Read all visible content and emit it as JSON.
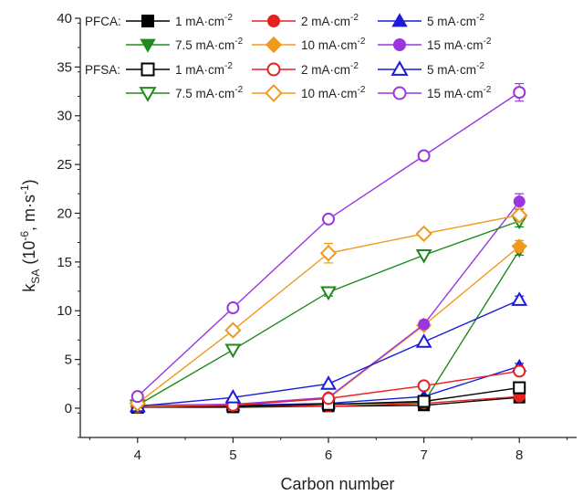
{
  "chart_data": {
    "type": "line",
    "title": "",
    "xlabel": "Carbon number",
    "ylabel": {
      "base": "k",
      "sub": "SA",
      "mid": " (10",
      "sup": "-6",
      "after": ", m·s",
      "sup2": "-1",
      "end": ")"
    },
    "xlim": [
      3.4,
      8.6
    ],
    "ylim": [
      -3,
      40
    ],
    "xticks": [
      4,
      5,
      6,
      7,
      8
    ],
    "yticks": [
      0,
      5,
      10,
      15,
      20,
      25,
      30,
      35,
      40
    ],
    "grid": false,
    "legend_placement": "top-left",
    "groups": [
      {
        "label": "PFCA:",
        "filled": true
      },
      {
        "label": "PFSA:",
        "filled": false
      }
    ],
    "series": [
      {
        "group": "PFCA",
        "legend_prefix": "1 mA·cm",
        "legend_sup": "-2",
        "color": "#000000",
        "marker": "square",
        "filled": true,
        "x": [
          4,
          5,
          6,
          7,
          8
        ],
        "y": [
          0.1,
          0.1,
          0.2,
          0.3,
          1.1
        ],
        "err": [
          0,
          0,
          0,
          0,
          0.2
        ]
      },
      {
        "group": "PFCA",
        "legend_prefix": "2 mA·cm",
        "legend_sup": "-2",
        "color": "#e8201e",
        "marker": "circle",
        "filled": true,
        "x": [
          4,
          5,
          6,
          7,
          8
        ],
        "y": [
          0.1,
          0.2,
          0.2,
          0.5,
          1.2
        ],
        "err": [
          0,
          0,
          0,
          0,
          0.2
        ]
      },
      {
        "group": "PFCA",
        "legend_prefix": "5 mA·cm",
        "legend_sup": "-2",
        "color": "#1a1adb",
        "marker": "triangle-up",
        "filled": true,
        "x": [
          4,
          5,
          6,
          7,
          8
        ],
        "y": [
          0.1,
          0.3,
          0.5,
          1.2,
          4.3
        ],
        "err": [
          0,
          0,
          0,
          0,
          0.3
        ]
      },
      {
        "group": "PFCA",
        "legend_prefix": "7.5 mA·cm",
        "legend_sup": "-2",
        "color": "#1e8a1e",
        "marker": "triangle-down",
        "filled": true,
        "x": [
          4,
          5,
          6,
          7,
          8
        ],
        "y": [
          0.1,
          0.2,
          0.4,
          0.6,
          16.2
        ],
        "err": [
          0,
          0,
          0,
          0,
          0.5
        ]
      },
      {
        "group": "PFCA",
        "legend_prefix": "10 mA·cm",
        "legend_sup": "-2",
        "color": "#f09a1c",
        "marker": "diamond",
        "filled": true,
        "x": [
          4,
          5,
          6,
          7,
          8
        ],
        "y": [
          0.2,
          0.3,
          1.0,
          8.5,
          16.6
        ],
        "err": [
          0,
          0,
          0,
          0.3,
          0.6
        ]
      },
      {
        "group": "PFCA",
        "legend_prefix": "15 mA·cm",
        "legend_sup": "-2",
        "color": "#9a36e0",
        "marker": "circle",
        "filled": true,
        "x": [
          4,
          5,
          6,
          7,
          8
        ],
        "y": [
          0.3,
          0.4,
          1.1,
          8.6,
          21.2
        ],
        "err": [
          0,
          0,
          0,
          0.4,
          0.8
        ]
      },
      {
        "group": "PFSA",
        "legend_prefix": "1 mA·cm",
        "legend_sup": "-2",
        "color": "#000000",
        "marker": "square",
        "filled": false,
        "x": [
          4,
          5,
          6,
          7,
          8
        ],
        "y": [
          0.1,
          0.2,
          0.4,
          0.7,
          2.1
        ],
        "err": [
          0,
          0,
          0,
          0,
          0.2
        ]
      },
      {
        "group": "PFSA",
        "legend_prefix": "2 mA·cm",
        "legend_sup": "-2",
        "color": "#e8201e",
        "marker": "circle",
        "filled": false,
        "x": [
          4,
          5,
          6,
          7,
          8
        ],
        "y": [
          0.1,
          0.3,
          1.0,
          2.3,
          3.8
        ],
        "err": [
          0,
          0,
          0,
          0,
          0.3
        ]
      },
      {
        "group": "PFSA",
        "legend_prefix": "5 mA·cm",
        "legend_sup": "-2",
        "color": "#1a1adb",
        "marker": "triangle-up",
        "filled": false,
        "x": [
          4,
          5,
          6,
          7,
          8
        ],
        "y": [
          0.2,
          1.1,
          2.5,
          6.8,
          11.1
        ],
        "err": [
          0,
          0,
          0,
          0,
          0.4
        ]
      },
      {
        "group": "PFSA",
        "legend_prefix": "7.5 mA·cm",
        "legend_sup": "-2",
        "color": "#1e8a1e",
        "marker": "triangle-down",
        "filled": false,
        "x": [
          4,
          5,
          6,
          7,
          8
        ],
        "y": [
          0.3,
          6.0,
          11.9,
          15.7,
          19.2
        ],
        "err": [
          0,
          0,
          0.4,
          0,
          0.6
        ]
      },
      {
        "group": "PFSA",
        "legend_prefix": "10 mA·cm",
        "legend_sup": "-2",
        "color": "#f09a1c",
        "marker": "diamond",
        "filled": false,
        "x": [
          4,
          5,
          6,
          7,
          8
        ],
        "y": [
          0.5,
          8.0,
          15.9,
          17.9,
          19.8
        ],
        "err": [
          0,
          0,
          1.0,
          0,
          0.7
        ]
      },
      {
        "group": "PFSA",
        "legend_prefix": "15 mA·cm",
        "legend_sup": "-2",
        "color": "#9a36e0",
        "marker": "circle",
        "filled": false,
        "x": [
          4,
          5,
          6,
          7,
          8
        ],
        "y": [
          1.2,
          10.3,
          19.4,
          25.9,
          32.4
        ],
        "err": [
          0,
          0,
          0.4,
          0,
          0.9
        ]
      }
    ]
  }
}
